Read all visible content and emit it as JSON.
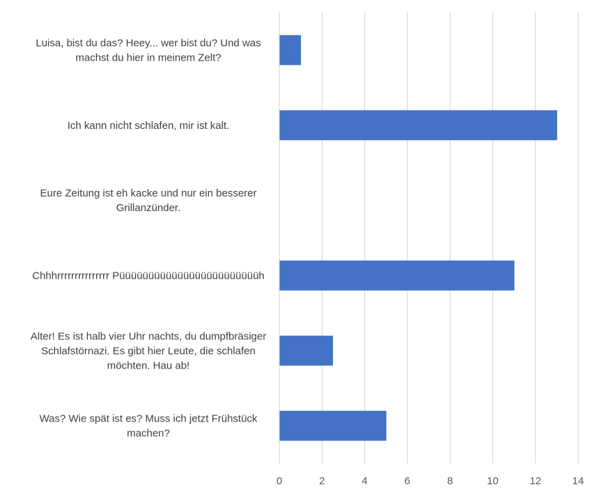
{
  "chart_data": {
    "type": "bar",
    "orientation": "horizontal",
    "categories": [
      [
        "Luisa, bist du das? Heey... wer bist du? Und was",
        "machst du hier in meinem Zelt?"
      ],
      [
        "Ich kann nicht schlafen, mir ist kalt."
      ],
      [
        "Eure Zeitung ist eh kacke und nur ein besserer",
        "Grillanzünder."
      ],
      [
        "Chhhrrrrrrrrrrrrrrr Püüüüüüüüüüüüüüüüüüüüüüüüh"
      ],
      [
        "Alter! Es ist halb vier Uhr nachts, du dumpfbräsiger",
        "Schlafstörnazi. Es gibt hier Leute, die schlafen",
        "möchten. Hau ab!"
      ],
      [
        "Was? Wie spät ist es? Muss ich jetzt Frühstück",
        "machen?"
      ]
    ],
    "values": [
      1,
      13,
      0,
      11,
      2.5,
      5
    ],
    "xlim": [
      0,
      14
    ],
    "xticks": [
      "0",
      "2",
      "4",
      "6",
      "8",
      "10",
      "12",
      "14"
    ],
    "title": "",
    "xlabel": "",
    "ylabel": "",
    "grid": true,
    "bar_color": "#4472c4",
    "grid_color": "#d9d9d9",
    "label_color": "#404040"
  }
}
